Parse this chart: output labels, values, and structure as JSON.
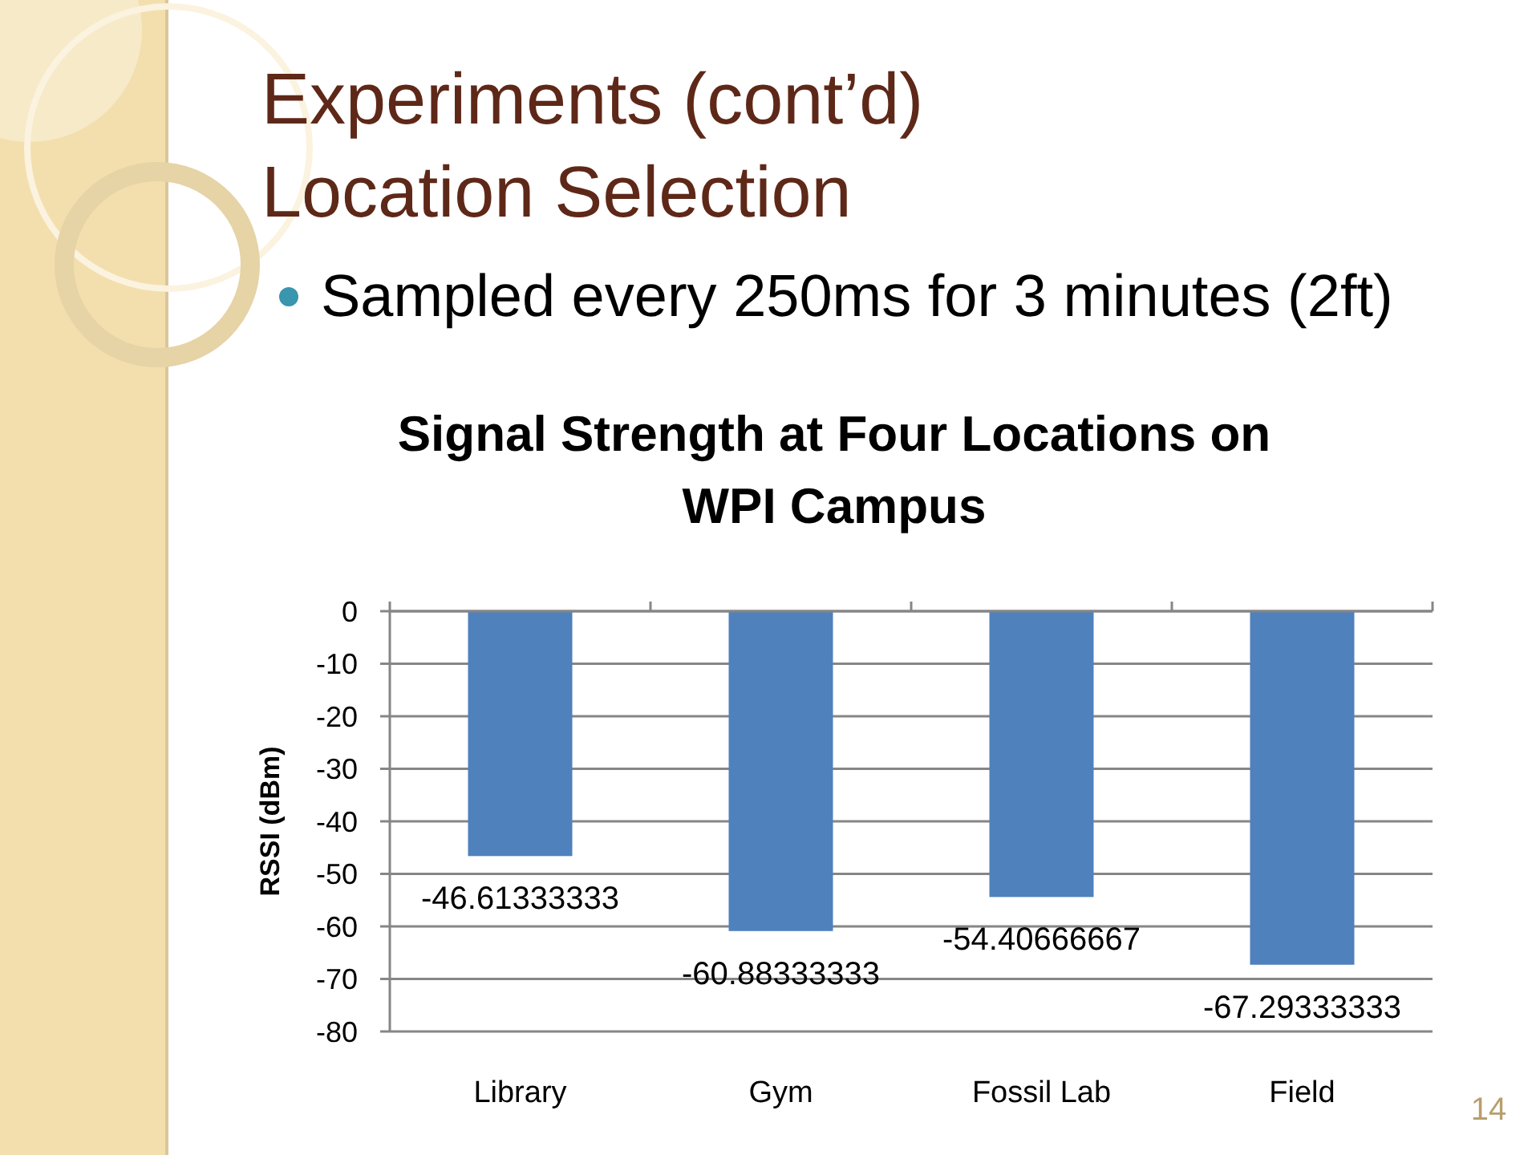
{
  "chart_data": {
    "type": "bar",
    "title": "Signal Strength at Four Locations on\nWPI Campus",
    "ylabel": "RSSI (dBm)",
    "annotations": [
      "Experiments (cont’d)",
      "Location Selection",
      "Sampled every 250ms for 3 minutes (2ft)",
      "14"
    ],
    "categories": [
      "Library",
      "Gym",
      "Fossil Lab",
      "Field"
    ],
    "values": [
      -46.61333333,
      -60.88333333,
      -54.40666667,
      -67.29333333
    ],
    "color": "#4f81bd",
    "ylim": [
      -80,
      0
    ],
    "yticks": [
      0,
      -10,
      -20,
      -30,
      -40,
      -50,
      -60,
      -70,
      -80
    ],
    "grid": "y",
    "data_labels": true
  }
}
